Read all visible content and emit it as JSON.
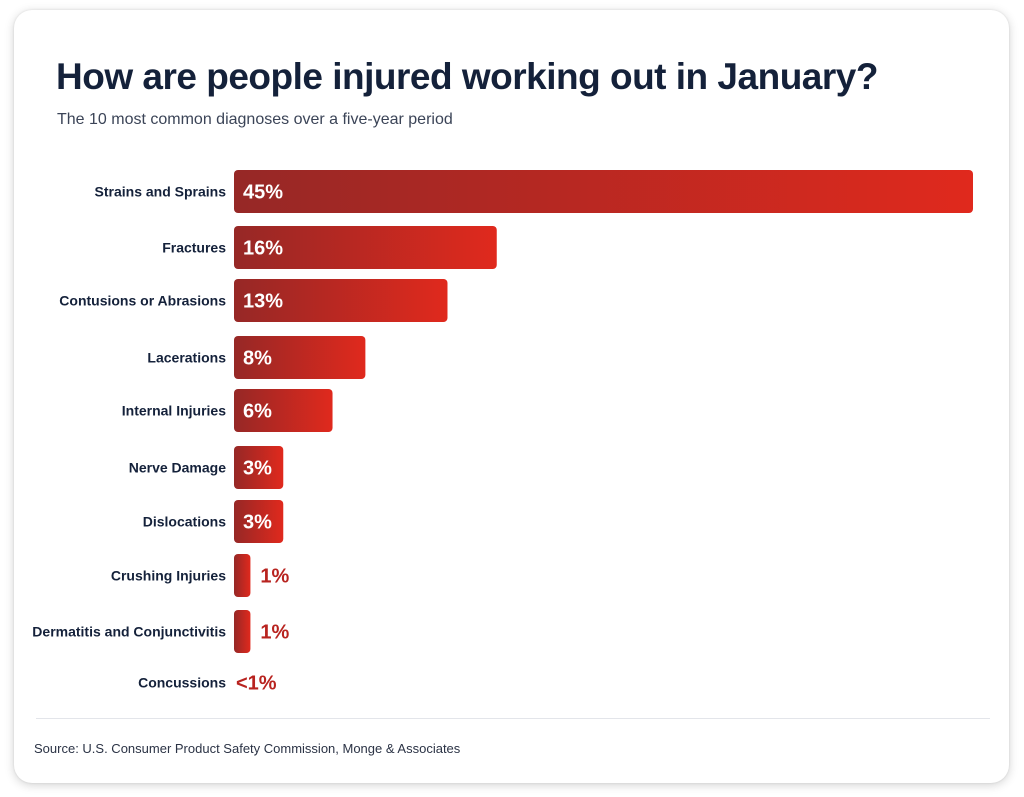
{
  "header": {
    "title": "How are people injured working out in January?",
    "subtitle": "The 10 most common diagnoses over a five-year period"
  },
  "footer": {
    "source": "Source: U.S. Consumer Product Safety Commission, Monge & Associates"
  },
  "colors": {
    "bar_start": "#962826",
    "bar_end": "#e0291d",
    "outside_label": "#b8231f",
    "title": "#14213a"
  },
  "chart_data": {
    "type": "bar",
    "orientation": "horizontal",
    "title": "How are people injured working out in January?",
    "subtitle": "The 10 most common diagnoses over a five-year period",
    "xlabel": "",
    "ylabel": "",
    "grid": false,
    "legend": "none",
    "categories": [
      "Strains and Sprains",
      "Fractures",
      "Contusions or Abrasions",
      "Lacerations",
      "Internal Injuries",
      "Nerve Damage",
      "Dislocations",
      "Crushing Injuries",
      "Dermatitis and Conjunctivitis",
      "Concussions"
    ],
    "values": [
      45,
      16,
      13,
      8,
      6,
      3,
      3,
      1,
      1,
      0.4
    ],
    "labels": [
      "45%",
      "16%",
      "13%",
      "8%",
      "6%",
      "3%",
      "3%",
      "1%",
      "1%",
      "<1%"
    ],
    "xlim": [
      0,
      45
    ]
  }
}
